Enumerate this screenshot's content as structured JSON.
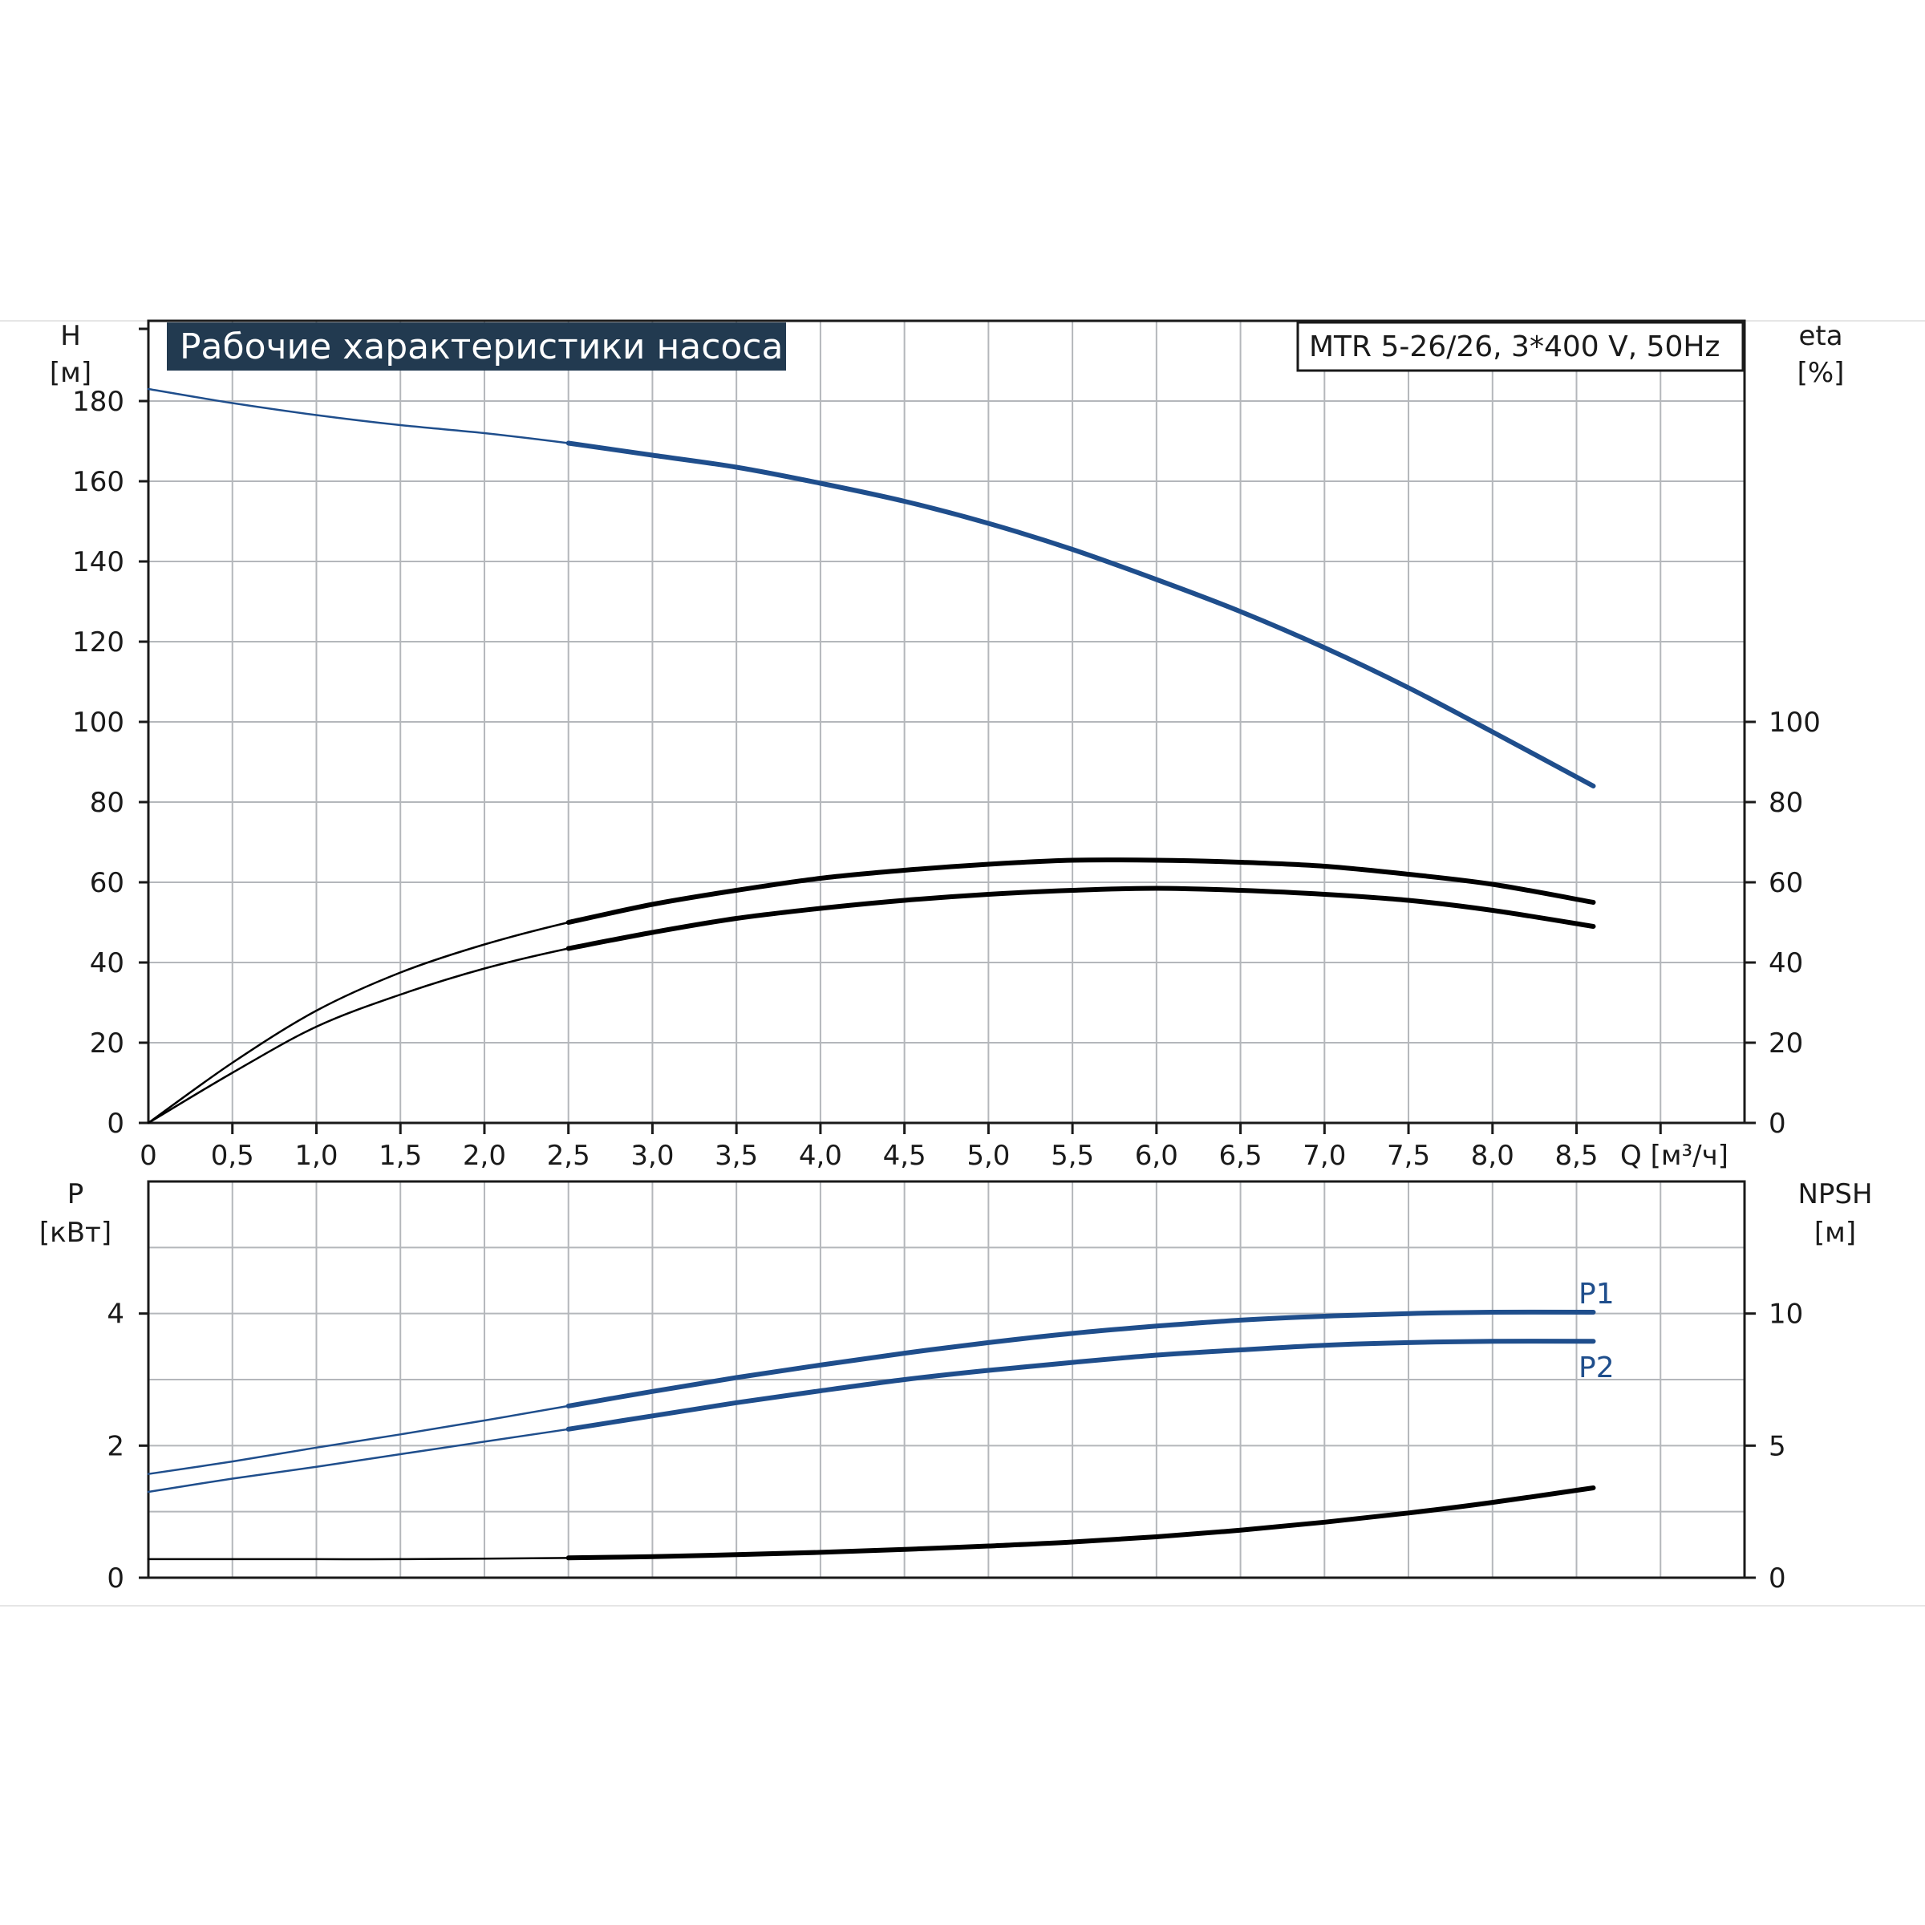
{
  "chart_data": [
    {
      "id": "performance",
      "type": "line",
      "title": "Рабочие характеристики насоса",
      "model": "MTR 5-26/26, 3*400 V, 50Hz",
      "xlabel": "Q [м³/ч]",
      "ylabel_left": [
        "H",
        "[м]"
      ],
      "ylabel_right": [
        "eta",
        "[%]"
      ],
      "xlim": [
        0,
        9.5
      ],
      "ylim": [
        0,
        200
      ],
      "x_ticks": [
        "0",
        "0,5",
        "1,0",
        "1,5",
        "2,0",
        "2,5",
        "3,0",
        "3,5",
        "4,0",
        "4,5",
        "5,0",
        "5,5",
        "6,0",
        "6,5",
        "7,0",
        "7,5",
        "8,0",
        "8,5"
      ],
      "x_tick_values": [
        0,
        0.5,
        1.0,
        1.5,
        2.0,
        2.5,
        3.0,
        3.5,
        4.0,
        4.5,
        5.0,
        5.5,
        6.0,
        6.5,
        7.0,
        7.5,
        8.0,
        8.5
      ],
      "y_left_ticks": [
        0,
        20,
        40,
        60,
        80,
        100,
        120,
        140,
        160,
        180
      ],
      "y_right_ticks": [
        0,
        20,
        40,
        60,
        80,
        100
      ],
      "grid": true,
      "series": [
        {
          "axis": "left",
          "color": "#1f4e8c",
          "x": [
            0,
            0.5,
            1.0,
            1.5,
            2.0,
            2.5,
            3.0,
            3.5,
            4.0,
            4.5,
            5.0,
            5.5,
            6.0,
            6.5,
            7.0,
            7.5,
            8.0,
            8.6
          ],
          "values": [
            183,
            179.5,
            176.5,
            174,
            172,
            169.5,
            166.5,
            163.5,
            159.5,
            155,
            149.5,
            143,
            135.5,
            127.5,
            118.5,
            108.5,
            97.5,
            84
          ]
        },
        {
          "axis": "right",
          "color": "#000000",
          "x": [
            0,
            0.5,
            1.0,
            1.5,
            2.0,
            2.5,
            3.0,
            3.5,
            4.0,
            4.5,
            5.0,
            5.5,
            6.0,
            6.5,
            7.0,
            7.5,
            8.0,
            8.6
          ],
          "values": [
            0,
            15,
            28,
            37.5,
            44.5,
            50,
            54.5,
            58,
            61,
            63,
            64.5,
            65.5,
            65.5,
            65,
            64,
            62,
            59.5,
            55
          ]
        },
        {
          "axis": "right",
          "color": "#000000",
          "x": [
            0,
            0.5,
            1.0,
            1.5,
            2.0,
            2.5,
            3.0,
            3.5,
            4.0,
            4.5,
            5.0,
            5.5,
            6.0,
            6.5,
            7.0,
            7.5,
            8.0,
            8.6
          ],
          "values": [
            0,
            12.5,
            24,
            32,
            38.5,
            43.5,
            47.5,
            51,
            53.5,
            55.5,
            57,
            58,
            58.5,
            58,
            57,
            55.5,
            53,
            49
          ]
        }
      ]
    },
    {
      "id": "power",
      "type": "line",
      "ylabel_left": [
        "P",
        "[кВт]"
      ],
      "ylabel_right": [
        "NPSH",
        "[м]"
      ],
      "xlim": [
        0,
        9.5
      ],
      "ylim": [
        0,
        6
      ],
      "y_left_ticks": [
        0,
        2,
        4
      ],
      "y_right_ticks": [
        0,
        5,
        10
      ],
      "grid": true,
      "series": [
        {
          "name": "P1",
          "axis": "left",
          "color": "#1f4e8c",
          "x": [
            0,
            0.5,
            1.0,
            1.5,
            2.0,
            2.5,
            3.0,
            3.5,
            4.0,
            4.5,
            5.0,
            5.5,
            6.0,
            6.5,
            7.0,
            7.5,
            8.0,
            8.6
          ],
          "values": [
            1.57,
            1.76,
            1.97,
            2.17,
            2.38,
            2.6,
            2.82,
            3.03,
            3.22,
            3.4,
            3.56,
            3.7,
            3.81,
            3.9,
            3.96,
            4.0,
            4.02,
            4.02
          ]
        },
        {
          "name": "P2",
          "axis": "left",
          "color": "#1f4e8c",
          "x": [
            0,
            0.5,
            1.0,
            1.5,
            2.0,
            2.5,
            3.0,
            3.5,
            4.0,
            4.5,
            5.0,
            5.5,
            6.0,
            6.5,
            7.0,
            7.5,
            8.0,
            8.6
          ],
          "values": [
            1.3,
            1.5,
            1.68,
            1.87,
            2.06,
            2.25,
            2.45,
            2.65,
            2.83,
            3.0,
            3.14,
            3.26,
            3.37,
            3.45,
            3.52,
            3.56,
            3.58,
            3.58
          ]
        },
        {
          "axis": "right",
          "color": "#000000",
          "x": [
            0,
            0.5,
            1.0,
            1.5,
            2.0,
            2.5,
            3.0,
            3.5,
            4.0,
            4.5,
            5.0,
            5.5,
            6.0,
            6.5,
            7.0,
            7.5,
            8.0,
            8.6
          ],
          "values": [
            0.7,
            0.7,
            0.7,
            0.7,
            0.72,
            0.75,
            0.8,
            0.87,
            0.96,
            1.07,
            1.2,
            1.35,
            1.55,
            1.8,
            2.1,
            2.45,
            2.85,
            3.4
          ]
        }
      ]
    }
  ]
}
